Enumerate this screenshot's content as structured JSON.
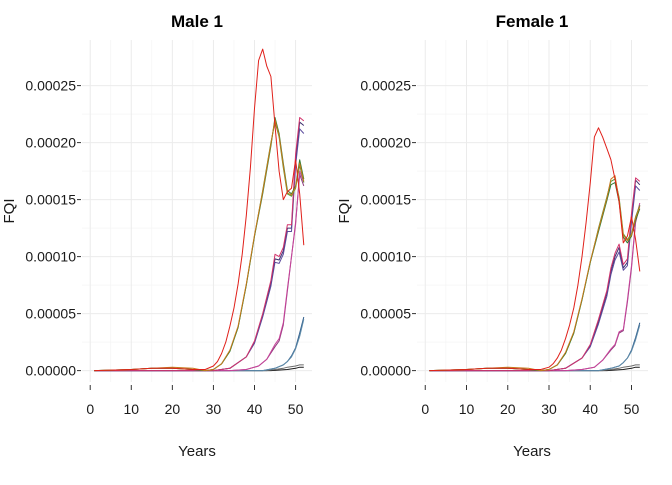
{
  "chart_data": [
    {
      "type": "line",
      "title": "Male 1",
      "xlabel": "Years",
      "ylabel": "FQI",
      "xlim": [
        -2,
        54
      ],
      "ylim": [
        -1e-05,
        0.00029
      ],
      "xticks": [
        0,
        10,
        20,
        30,
        40,
        50
      ],
      "yticks": [
        0,
        5e-05,
        0.0001,
        0.00015,
        0.0002,
        0.00025
      ],
      "ytick_labels": [
        "0.00000",
        "0.00005",
        "0.00010",
        "0.00015",
        "0.00020",
        "0.00025"
      ],
      "grid": true,
      "series": [
        {
          "color": "#1a1a1a",
          "x": [
            1,
            40,
            44,
            48,
            50,
            51,
            52
          ],
          "y": [
            0,
            0,
            0,
            1e-06,
            2e-06,
            3e-06,
            3e-06
          ]
        },
        {
          "color": "#6b6b6b",
          "x": [
            1,
            43,
            45,
            47,
            48,
            50,
            51,
            52
          ],
          "y": [
            0,
            0,
            1e-06,
            2e-06,
            3e-06,
            4e-06,
            5e-06,
            5e-06
          ]
        },
        {
          "color": "#2f5d8c",
          "x": [
            1,
            38,
            42,
            45,
            47,
            48,
            49,
            50,
            51,
            52
          ],
          "y": [
            0,
            0,
            0,
            2e-06,
            5e-06,
            8e-06,
            1.3e-05,
            2e-05,
            3.3e-05,
            4.7e-05
          ]
        },
        {
          "color": "#5d8aa8",
          "x": [
            1,
            38,
            42,
            45,
            47,
            48,
            49,
            50,
            51,
            52
          ],
          "y": [
            0,
            0,
            0,
            2e-06,
            5e-06,
            8e-06,
            1.2e-05,
            1.9e-05,
            3e-05,
            4.5e-05
          ]
        },
        {
          "color": "#8e3b7d",
          "x": [
            1,
            34,
            38,
            41,
            43,
            45,
            46,
            47,
            48,
            49,
            50,
            51,
            52
          ],
          "y": [
            0,
            0,
            1e-06,
            4e-06,
            1e-05,
            2.1e-05,
            2.6e-05,
            4e-05,
            7e-05,
            0.0001,
            0.00013,
            0.000172,
            0.000162
          ]
        },
        {
          "color": "#c7449a",
          "x": [
            1,
            34,
            38,
            41,
            43,
            45,
            46,
            47,
            48,
            49,
            50,
            51,
            52
          ],
          "y": [
            0,
            0,
            1e-06,
            4e-06,
            1e-05,
            2.3e-05,
            2.8e-05,
            4.2e-05,
            7.2e-05,
            0.0001,
            0.000128,
            0.000175,
            0.000165
          ]
        },
        {
          "color": "#3d2f6e",
          "x": [
            1,
            30,
            34,
            38,
            40,
            42,
            44,
            45,
            46,
            47,
            48,
            49,
            50,
            51,
            52
          ],
          "y": [
            0,
            0,
            2e-06,
            1.2e-05,
            2.5e-05,
            4.9e-05,
            7.7e-05,
            9.8e-05,
            9.7e-05,
            0.000105,
            0.000125,
            0.000125,
            0.000185,
            0.000218,
            0.000215
          ]
        },
        {
          "color": "#5a4a9c",
          "x": [
            1,
            30,
            34,
            38,
            40,
            42,
            44,
            45,
            46,
            47,
            48,
            49,
            50,
            51,
            52
          ],
          "y": [
            0,
            0,
            2e-06,
            1.2e-05,
            2.4e-05,
            4.7e-05,
            7.4e-05,
            9.5e-05,
            9.4e-05,
            0.000102,
            0.000122,
            0.000122,
            0.00018,
            0.000212,
            0.000208
          ]
        },
        {
          "color": "#d2336b",
          "x": [
            1,
            30,
            34,
            38,
            40,
            42,
            44,
            45,
            46,
            47,
            48,
            49,
            50,
            51,
            52
          ],
          "y": [
            0,
            0,
            2e-06,
            1.2e-05,
            2.6e-05,
            5e-05,
            7.9e-05,
            0.000102,
            0.0001,
            0.000108,
            0.000128,
            0.000128,
            0.00019,
            0.000222,
            0.000219
          ]
        },
        {
          "color": "#4e9a3a",
          "x": [
            1,
            10,
            15,
            20,
            25,
            28,
            30,
            32,
            34,
            36,
            38,
            40,
            42,
            44,
            45,
            46,
            47,
            48,
            49,
            50,
            51,
            52
          ],
          "y": [
            0,
            1e-06,
            2e-06,
            2e-06,
            1e-06,
            0,
            1e-06,
            6e-06,
            1.7e-05,
            3.8e-05,
            7.5e-05,
            0.000118,
            0.000158,
            0.0002,
            0.000218,
            0.000205,
            0.000178,
            0.000155,
            0.000153,
            0.00016,
            0.00018,
            0.000165
          ]
        },
        {
          "color": "#2e7d32",
          "x": [
            1,
            10,
            15,
            20,
            25,
            28,
            30,
            32,
            34,
            36,
            38,
            40,
            42,
            44,
            45,
            46,
            47,
            48,
            49,
            50,
            51,
            52
          ],
          "y": [
            0,
            1e-06,
            2e-06,
            2e-06,
            1e-06,
            0,
            1e-06,
            6e-06,
            1.7e-05,
            3.8e-05,
            7.5e-05,
            0.000118,
            0.000155,
            0.000197,
            0.000222,
            0.000208,
            0.000182,
            0.000158,
            0.000155,
            0.000162,
            0.000185,
            0.000168
          ]
        },
        {
          "color": "#c8781c",
          "x": [
            1,
            10,
            15,
            20,
            25,
            28,
            30,
            32,
            34,
            36,
            38,
            40,
            42,
            44,
            45,
            46,
            47,
            48,
            49,
            50,
            51,
            52
          ],
          "y": [
            0,
            1e-06,
            2e-06,
            3e-06,
            2e-06,
            0,
            1e-06,
            6e-06,
            1.8e-05,
            3.9e-05,
            7.6e-05,
            0.000119,
            0.000157,
            0.000199,
            0.00022,
            0.000206,
            0.00018,
            0.000156,
            0.000154,
            0.000161,
            0.000182,
            0.000166
          ]
        },
        {
          "color": "#e0201a",
          "x": [
            1,
            10,
            15,
            20,
            25,
            28,
            30,
            31,
            32,
            33,
            34,
            35,
            36,
            37,
            38,
            39,
            40,
            41,
            42,
            43,
            44,
            45,
            46,
            47,
            48,
            49,
            50,
            51,
            52
          ],
          "y": [
            0,
            1e-06,
            2e-06,
            2e-06,
            1e-06,
            1e-06,
            4e-06,
            8e-06,
            1.5e-05,
            2.5e-05,
            3.9e-05,
            5.5e-05,
            7.6e-05,
            0.000102,
            0.000136,
            0.000178,
            0.00023,
            0.000272,
            0.000282,
            0.000267,
            0.000258,
            0.000215,
            0.000175,
            0.00015,
            0.000157,
            0.00016,
            0.000185,
            0.000155,
            0.00011
          ]
        }
      ]
    },
    {
      "type": "line",
      "title": "Female 1",
      "xlabel": "Years",
      "ylabel": "FQI",
      "xlim": [
        -2,
        54
      ],
      "ylim": [
        -1e-05,
        0.00029
      ],
      "xticks": [
        0,
        10,
        20,
        30,
        40,
        50
      ],
      "yticks": [
        0,
        5e-05,
        0.0001,
        0.00015,
        0.0002,
        0.00025
      ],
      "ytick_labels": [
        "0.00000",
        "0.00005",
        "0.00010",
        "0.00015",
        "0.00020",
        "0.00025"
      ],
      "grid": true,
      "series": [
        {
          "color": "#1a1a1a",
          "x": [
            1,
            40,
            44,
            48,
            50,
            51,
            52
          ],
          "y": [
            0,
            0,
            0,
            1e-06,
            2e-06,
            3e-06,
            3e-06
          ]
        },
        {
          "color": "#6b6b6b",
          "x": [
            1,
            43,
            45,
            47,
            48,
            50,
            51,
            52
          ],
          "y": [
            0,
            0,
            1e-06,
            2e-06,
            3e-06,
            4e-06,
            5e-06,
            5e-06
          ]
        },
        {
          "color": "#2f5d8c",
          "x": [
            1,
            38,
            42,
            45,
            47,
            48,
            49,
            50,
            51,
            52
          ],
          "y": [
            0,
            0,
            0,
            2e-06,
            4e-06,
            7e-06,
            1.1e-05,
            1.8e-05,
            2.9e-05,
            4.2e-05
          ]
        },
        {
          "color": "#5d8aa8",
          "x": [
            1,
            38,
            42,
            45,
            47,
            48,
            49,
            50,
            51,
            52
          ],
          "y": [
            0,
            0,
            0,
            2e-06,
            4e-06,
            7e-06,
            1.1e-05,
            1.7e-05,
            2.7e-05,
            4e-05
          ]
        },
        {
          "color": "#8e3b7d",
          "x": [
            1,
            34,
            38,
            41,
            43,
            45,
            46,
            47,
            48,
            49,
            50,
            51,
            52
          ],
          "y": [
            0,
            0,
            1e-06,
            3e-06,
            9e-06,
            1.8e-05,
            2.2e-05,
            3.3e-05,
            3.5e-05,
            6e-05,
            9e-05,
            0.00013,
            0.000145
          ]
        },
        {
          "color": "#c7449a",
          "x": [
            1,
            34,
            38,
            41,
            43,
            45,
            46,
            47,
            48,
            49,
            50,
            51,
            52
          ],
          "y": [
            0,
            0,
            1e-06,
            3e-06,
            9e-06,
            1.9e-05,
            2.3e-05,
            3.4e-05,
            3.6e-05,
            6.2e-05,
            9.2e-05,
            0.000132,
            0.000147
          ]
        },
        {
          "color": "#3d2f6e",
          "x": [
            1,
            30,
            34,
            38,
            40,
            42,
            44,
            45,
            46,
            47,
            48,
            49,
            50,
            51,
            52
          ],
          "y": [
            0,
            0,
            2e-06,
            1.1e-05,
            2.2e-05,
            4.3e-05,
            6.8e-05,
            8.7e-05,
            0.0001,
            0.000108,
            9e-05,
            9.5e-05,
            0.000135,
            0.000167,
            0.000163
          ]
        },
        {
          "color": "#5a4a9c",
          "x": [
            1,
            30,
            34,
            38,
            40,
            42,
            44,
            45,
            46,
            47,
            48,
            49,
            50,
            51,
            52
          ],
          "y": [
            0,
            0,
            2e-06,
            1.1e-05,
            2.1e-05,
            4.1e-05,
            6.5e-05,
            8.4e-05,
            9.7e-05,
            0.000104,
            8.8e-05,
            9.2e-05,
            0.00013,
            0.000162,
            0.000158
          ]
        },
        {
          "color": "#d2336b",
          "x": [
            1,
            30,
            34,
            38,
            40,
            42,
            44,
            45,
            46,
            47,
            48,
            49,
            50,
            51,
            52
          ],
          "y": [
            0,
            0,
            2e-06,
            1.1e-05,
            2.3e-05,
            4.5e-05,
            7e-05,
            9e-05,
            0.000103,
            0.000111,
            9.3e-05,
            9.8e-05,
            0.000138,
            0.000169,
            0.000166
          ]
        },
        {
          "color": "#4e9a3a",
          "x": [
            1,
            10,
            15,
            20,
            25,
            28,
            30,
            32,
            34,
            36,
            38,
            40,
            42,
            44,
            45,
            46,
            47,
            48,
            49,
            50,
            51,
            52
          ],
          "y": [
            0,
            1e-06,
            2e-06,
            2e-06,
            1e-06,
            0,
            1e-06,
            5e-06,
            1.5e-05,
            3.3e-05,
            6.2e-05,
            9.5e-05,
            0.000125,
            0.000152,
            0.000166,
            0.000168,
            0.000152,
            0.00012,
            0.000115,
            0.00012,
            0.000135,
            0.000145
          ]
        },
        {
          "color": "#2e7d32",
          "x": [
            1,
            10,
            15,
            20,
            25,
            28,
            30,
            32,
            34,
            36,
            38,
            40,
            42,
            44,
            45,
            46,
            47,
            48,
            49,
            50,
            51,
            52
          ],
          "y": [
            0,
            1e-06,
            2e-06,
            2e-06,
            1e-06,
            0,
            1e-06,
            5e-06,
            1.5e-05,
            3.3e-05,
            6.2e-05,
            9.5e-05,
            0.000122,
            0.000149,
            0.000163,
            0.000165,
            0.000148,
            0.000117,
            0.000112,
            0.000118,
            0.000132,
            0.000142
          ]
        },
        {
          "color": "#c8781c",
          "x": [
            1,
            10,
            15,
            20,
            25,
            28,
            30,
            32,
            34,
            36,
            38,
            40,
            42,
            44,
            45,
            46,
            47,
            48,
            49,
            50,
            51,
            52
          ],
          "y": [
            0,
            1e-06,
            2e-06,
            3e-06,
            2e-06,
            0,
            1e-06,
            5e-06,
            1.6e-05,
            3.4e-05,
            6.3e-05,
            9.6e-05,
            0.000124,
            0.000151,
            0.000168,
            0.000171,
            0.00015,
            0.000119,
            0.000114,
            0.000119,
            0.000134,
            0.000144
          ]
        },
        {
          "color": "#e0201a",
          "x": [
            1,
            10,
            15,
            20,
            25,
            28,
            30,
            31,
            32,
            33,
            34,
            35,
            36,
            37,
            38,
            39,
            40,
            41,
            42,
            43,
            44,
            45,
            46,
            47,
            48,
            49,
            50,
            51,
            52
          ],
          "y": [
            0,
            1e-06,
            2e-06,
            2e-06,
            1e-06,
            1e-06,
            3e-06,
            6e-06,
            1.1e-05,
            1.8e-05,
            2.8e-05,
            4e-05,
            5.5e-05,
            7.5e-05,
            0.0001,
            0.00013,
            0.000165,
            0.000205,
            0.000213,
            0.000205,
            0.000195,
            0.000185,
            0.000168,
            0.000148,
            0.000112,
            0.000118,
            0.000135,
            0.000115,
            8.7e-05
          ]
        }
      ]
    }
  ]
}
